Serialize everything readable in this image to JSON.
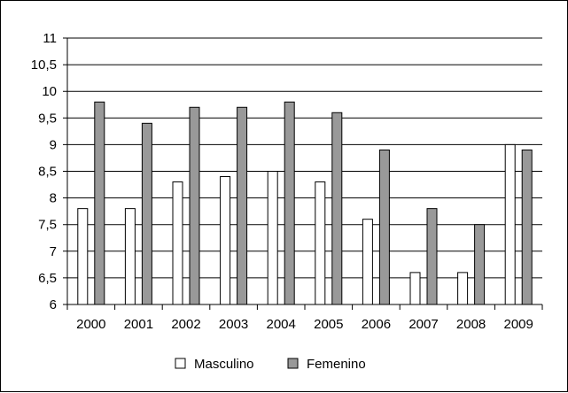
{
  "chart_data": {
    "type": "bar",
    "title": "",
    "xlabel": "",
    "ylabel": "",
    "categories": [
      "2000",
      "2001",
      "2002",
      "2003",
      "2004",
      "2005",
      "2006",
      "2007",
      "2008",
      "2009"
    ],
    "series": [
      {
        "name": "Masculino",
        "values": [
          7.8,
          7.8,
          8.3,
          8.4,
          8.5,
          8.3,
          7.6,
          6.6,
          6.6,
          9.0
        ],
        "color": "#ffffff"
      },
      {
        "name": "Femenino",
        "values": [
          9.8,
          9.4,
          9.7,
          9.7,
          9.8,
          9.6,
          8.9,
          7.8,
          7.5,
          8.9
        ],
        "color": "#999999"
      }
    ],
    "ylim": [
      6,
      11
    ],
    "yticks": [
      "6",
      "6,5",
      "7",
      "7,5",
      "8",
      "8,5",
      "9",
      "9,5",
      "10",
      "10,5",
      "11"
    ],
    "grid": true,
    "legend_position": "bottom"
  }
}
